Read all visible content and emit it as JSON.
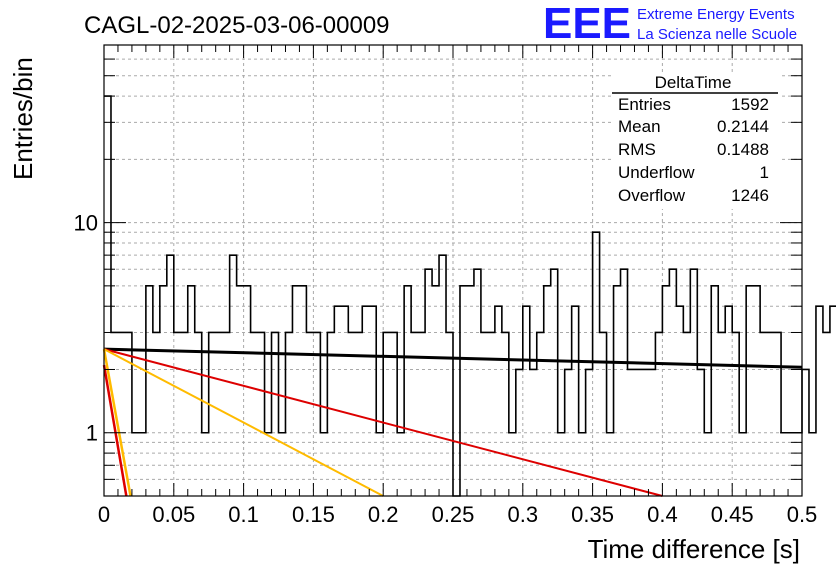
{
  "header": {
    "run_title": "CAGL-02-2025-03-06-00009",
    "logo_text": "EEE",
    "logo_line1": "Extreme Energy Events",
    "logo_line2": "La Scienza nelle Scuole"
  },
  "stats_box": {
    "title": "DeltaTime",
    "rows": [
      {
        "label": "Entries",
        "value": "1592"
      },
      {
        "label": "Mean",
        "value": "0.2144"
      },
      {
        "label": "RMS",
        "value": "0.1488"
      },
      {
        "label": "Underflow",
        "value": "1"
      },
      {
        "label": "Overflow",
        "value": "1246"
      }
    ]
  },
  "colors": {
    "histogram": "#000000",
    "fit_black": "#000000",
    "fit_red": "#dd0000",
    "fit_yellow": "#ffbb00",
    "grid": "#aaaaaa",
    "logo": "#1a1aff"
  },
  "chart_data": {
    "type": "line",
    "title": "CAGL-02-2025-03-06-00009",
    "xlabel": "Time difference [s]",
    "ylabel": "Entries/bin",
    "xlim": [
      0,
      0.5
    ],
    "ylim": [
      0.5,
      70
    ],
    "yscale": "log",
    "grid": true,
    "x_ticks": [
      "0",
      "0.05",
      "0.1",
      "0.15",
      "0.2",
      "0.25",
      "0.3",
      "0.35",
      "0.4",
      "0.45",
      "0.5"
    ],
    "y_ticks": [
      {
        "value": 1,
        "label": "1"
      },
      {
        "value": 10,
        "label": "10"
      }
    ],
    "bin_width": 0.005,
    "series": [
      {
        "name": "DeltaTime",
        "kind": "histogram",
        "values": [
          40,
          3,
          3,
          3,
          1,
          1,
          5,
          3,
          5,
          7,
          3,
          3,
          5,
          3,
          1,
          3,
          3,
          3,
          7,
          5,
          5,
          3,
          3,
          1,
          3,
          1,
          3,
          5,
          5,
          3,
          3,
          1,
          3,
          4,
          4,
          3,
          3,
          4,
          4,
          1,
          3,
          3,
          1,
          5,
          3,
          3,
          6,
          5,
          7,
          3,
          0,
          5,
          5,
          6,
          3,
          3,
          4,
          3,
          1,
          2,
          4,
          2,
          3,
          5,
          6,
          1,
          2,
          4,
          1,
          2,
          9,
          3,
          1,
          5,
          6,
          2,
          2,
          2,
          2,
          3,
          5,
          6,
          4,
          3,
          6,
          2,
          1,
          5,
          3,
          4,
          3,
          1,
          5,
          5,
          3,
          3,
          3,
          1,
          1,
          1,
          2,
          1,
          4,
          3,
          4,
          1,
          1,
          4,
          1,
          4,
          3,
          2,
          4,
          1,
          4,
          1,
          2,
          3,
          3,
          3,
          2,
          3,
          1,
          2,
          2,
          3,
          1,
          1,
          2,
          2,
          2,
          2,
          3,
          2,
          2,
          1,
          1,
          3,
          1,
          1,
          1,
          3,
          1,
          1,
          1,
          8,
          1,
          2,
          3,
          4,
          4,
          3,
          4,
          1,
          0,
          1,
          3,
          4,
          3,
          5,
          4,
          3,
          1,
          1,
          0,
          0,
          0,
          0,
          0,
          0,
          0,
          0,
          0,
          0,
          0,
          0,
          0,
          0,
          0,
          0,
          0,
          0,
          0,
          0,
          0,
          0,
          0,
          0,
          0,
          0,
          0,
          0,
          0,
          0,
          0,
          0
        ]
      },
      {
        "name": "fit_black",
        "kind": "line",
        "x": [
          0,
          0.5
        ],
        "y": [
          2.5,
          2.05
        ]
      },
      {
        "name": "fit_red",
        "kind": "line",
        "x": [
          0,
          0.4
        ],
        "y": [
          2.5,
          0.5
        ]
      },
      {
        "name": "fit_yellow",
        "kind": "line",
        "x": [
          0,
          0.2
        ],
        "y": [
          2.5,
          0.5
        ]
      },
      {
        "name": "fit_red_steep",
        "kind": "line",
        "x": [
          0,
          0.016
        ],
        "y": [
          2.1,
          0.5
        ]
      },
      {
        "name": "fit_yellow_steep",
        "kind": "line",
        "x": [
          0,
          0.019
        ],
        "y": [
          2.5,
          0.5
        ]
      }
    ]
  }
}
